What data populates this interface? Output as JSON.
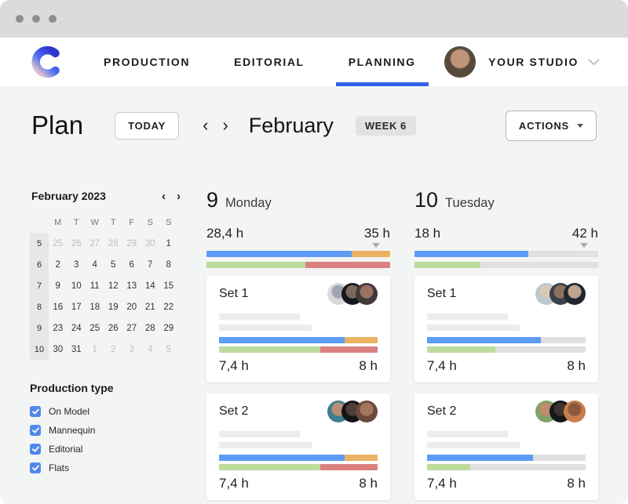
{
  "colors": {
    "blue": "#5C9CF5",
    "orange": "#EAB262",
    "green": "#BBDC9B",
    "red": "#DB8080",
    "gray": "#E1E1E1",
    "accent": "#2F62E8",
    "checkbox": "#5089EE"
  },
  "nav": {
    "logo_gradient": [
      "#2D35CE",
      "#4C6EF4",
      "#DCBECC"
    ],
    "tabs": [
      {
        "label": "PRODUCTION",
        "active": false
      },
      {
        "label": "EDITORIAL",
        "active": false
      },
      {
        "label": "PLANNING",
        "active": true
      }
    ],
    "account": {
      "label": "YOUR STUDIO",
      "avatar": {
        "skin": "#C09478",
        "bg": "#57493C"
      }
    }
  },
  "toolbar": {
    "title": "Plan",
    "today": "TODAY",
    "month": "February",
    "week_badge": "WEEK 6",
    "actions": "ACTIONS"
  },
  "icons": {
    "chevron_left": "‹",
    "chevron_right": "›"
  },
  "sidebar": {
    "calendar": {
      "title": "February 2023",
      "day_headers": [
        "M",
        "T",
        "W",
        "T",
        "F",
        "S",
        "S"
      ],
      "weeks": [
        {
          "num": "5",
          "days": [
            {
              "d": "25",
              "muted": true
            },
            {
              "d": "26",
              "muted": true
            },
            {
              "d": "27",
              "muted": true
            },
            {
              "d": "28",
              "muted": true
            },
            {
              "d": "29",
              "muted": true
            },
            {
              "d": "30",
              "muted": true
            },
            {
              "d": "1",
              "muted": false
            }
          ]
        },
        {
          "num": "6",
          "days": [
            {
              "d": "2"
            },
            {
              "d": "3"
            },
            {
              "d": "4"
            },
            {
              "d": "5"
            },
            {
              "d": "6"
            },
            {
              "d": "7"
            },
            {
              "d": "8"
            }
          ]
        },
        {
          "num": "7",
          "days": [
            {
              "d": "9"
            },
            {
              "d": "10"
            },
            {
              "d": "11"
            },
            {
              "d": "12"
            },
            {
              "d": "13"
            },
            {
              "d": "14"
            },
            {
              "d": "15"
            }
          ]
        },
        {
          "num": "8",
          "days": [
            {
              "d": "16"
            },
            {
              "d": "17"
            },
            {
              "d": "18"
            },
            {
              "d": "19"
            },
            {
              "d": "20"
            },
            {
              "d": "21"
            },
            {
              "d": "22"
            }
          ]
        },
        {
          "num": "9",
          "days": [
            {
              "d": "23"
            },
            {
              "d": "24"
            },
            {
              "d": "25"
            },
            {
              "d": "26"
            },
            {
              "d": "27"
            },
            {
              "d": "28"
            },
            {
              "d": "29"
            }
          ]
        },
        {
          "num": "10",
          "days": [
            {
              "d": "30"
            },
            {
              "d": "31"
            },
            {
              "d": "1",
              "muted": true
            },
            {
              "d": "2",
              "muted": true
            },
            {
              "d": "3",
              "muted": true
            },
            {
              "d": "4",
              "muted": true
            },
            {
              "d": "5",
              "muted": true
            }
          ]
        }
      ]
    },
    "filters": {
      "title": "Production type",
      "items": [
        {
          "label": "On Model",
          "checked": true
        },
        {
          "label": "Mannequin",
          "checked": true
        },
        {
          "label": "Editorial",
          "checked": true
        },
        {
          "label": "Flats",
          "checked": true
        }
      ]
    }
  },
  "board": {
    "days": [
      {
        "number": "9",
        "name": "Monday",
        "hours_left": "28,4 h",
        "hours_right": "35 h",
        "bar_top": [
          {
            "color": "blue",
            "pct": 79
          },
          {
            "color": "orange",
            "pct": 21
          }
        ],
        "bar_bottom": [
          {
            "color": "green",
            "pct": 54
          },
          {
            "color": "red",
            "pct": 46
          }
        ],
        "sets": [
          {
            "name": "Set 1",
            "hours_left": "7,4 h",
            "hours_right": "8 h",
            "bar_top": [
              {
                "color": "blue",
                "pct": 79
              },
              {
                "color": "orange",
                "pct": 21
              }
            ],
            "bar_bottom": [
              {
                "color": "green",
                "pct": 64
              },
              {
                "color": "red",
                "pct": 36
              }
            ],
            "avatars": [
              {
                "skin": "#9FA6B0",
                "bg": "#D7D9DB"
              },
              {
                "skin": "#7B6A5E",
                "bg": "#17181C"
              },
              {
                "skin": "#9C7260",
                "bg": "#3E3A39"
              }
            ]
          },
          {
            "name": "Set 2",
            "hours_left": "7,4 h",
            "hours_right": "8 h",
            "bar_top": [
              {
                "color": "blue",
                "pct": 79
              },
              {
                "color": "orange",
                "pct": 21
              }
            ],
            "bar_bottom": [
              {
                "color": "green",
                "pct": 64
              },
              {
                "color": "red",
                "pct": 36
              }
            ],
            "avatars": [
              {
                "skin": "#B98F77",
                "bg": "#3F7E8C"
              },
              {
                "skin": "#4A3D36",
                "bg": "#131417"
              },
              {
                "skin": "#A4765F",
                "bg": "#6B4A3C"
              }
            ]
          }
        ]
      },
      {
        "number": "10",
        "name": "Tuesday",
        "hours_left": "18 h",
        "hours_right": "42 h",
        "bar_top": [
          {
            "color": "blue",
            "pct": 62
          },
          {
            "color": "gray",
            "pct": 38
          }
        ],
        "bar_bottom": [
          {
            "color": "green",
            "pct": 36
          },
          {
            "color": "gray",
            "pct": 64
          }
        ],
        "sets": [
          {
            "name": "Set 1",
            "hours_left": "7,4 h",
            "hours_right": "8 h",
            "bar_top": [
              {
                "color": "blue",
                "pct": 72
              },
              {
                "color": "gray",
                "pct": 28
              }
            ],
            "bar_bottom": [
              {
                "color": "green",
                "pct": 43
              },
              {
                "color": "gray",
                "pct": 57
              }
            ],
            "avatars": [
              {
                "skin": "#D9C9B8",
                "bg": "#BFC7CE"
              },
              {
                "skin": "#8A7160",
                "bg": "#39414C"
              },
              {
                "skin": "#C0A48E",
                "bg": "#20262E"
              }
            ]
          },
          {
            "name": "Set 2",
            "hours_left": "7,4 h",
            "hours_right": "8 h",
            "bar_top": [
              {
                "color": "blue",
                "pct": 67
              },
              {
                "color": "gray",
                "pct": 33
              }
            ],
            "bar_bottom": [
              {
                "color": "green",
                "pct": 27
              },
              {
                "color": "gray",
                "pct": 73
              }
            ],
            "avatars": [
              {
                "skin": "#C08A70",
                "bg": "#7FA267"
              },
              {
                "skin": "#3E332D",
                "bg": "#14161A"
              },
              {
                "skin": "#8A5A40",
                "bg": "#C77E4A"
              }
            ]
          }
        ]
      }
    ]
  }
}
